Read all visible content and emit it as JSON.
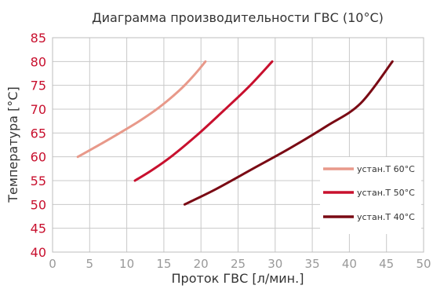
{
  "chart_data": {
    "type": "line",
    "title": "Диаграмма производительности ГВС (10°C)",
    "xlabel": "Проток ГВС [л/мин.]",
    "ylabel": "Температура [°C]",
    "xlim": [
      0,
      50
    ],
    "ylim": [
      40,
      85
    ],
    "xticks": [
      "0",
      "5",
      "10",
      "15",
      "20",
      "25",
      "30",
      "35",
      "40",
      "45",
      "50"
    ],
    "yticks": [
      "40",
      "45",
      "50",
      "55",
      "60",
      "65",
      "70",
      "75",
      "80",
      "85"
    ],
    "grid": true,
    "legend_position": "right",
    "series": [
      {
        "name": "устан.Т 60°C",
        "color": "#e8998a",
        "points": [
          [
            3.4,
            60
          ],
          [
            5.5,
            61.8
          ],
          [
            8.5,
            64.5
          ],
          [
            11.5,
            67.3
          ],
          [
            14.3,
            70.3
          ],
          [
            17.0,
            73.8
          ],
          [
            19.0,
            77
          ],
          [
            20.6,
            80
          ]
        ]
      },
      {
        "name": "устан.Т 50°C",
        "color": "#c8102e",
        "points": [
          [
            11.1,
            55
          ],
          [
            13.5,
            57.3
          ],
          [
            16.2,
            60.3
          ],
          [
            19.5,
            64.6
          ],
          [
            23.0,
            69.6
          ],
          [
            26.5,
            74.8
          ],
          [
            29.6,
            80
          ]
        ]
      },
      {
        "name": "устан.Т 40°C",
        "color": "#7a0a14",
        "points": [
          [
            17.8,
            50
          ],
          [
            22.0,
            53.2
          ],
          [
            27.0,
            57.5
          ],
          [
            32.0,
            61.8
          ],
          [
            37.0,
            66.5
          ],
          [
            41.5,
            71.2
          ],
          [
            45.8,
            80
          ]
        ]
      }
    ]
  }
}
